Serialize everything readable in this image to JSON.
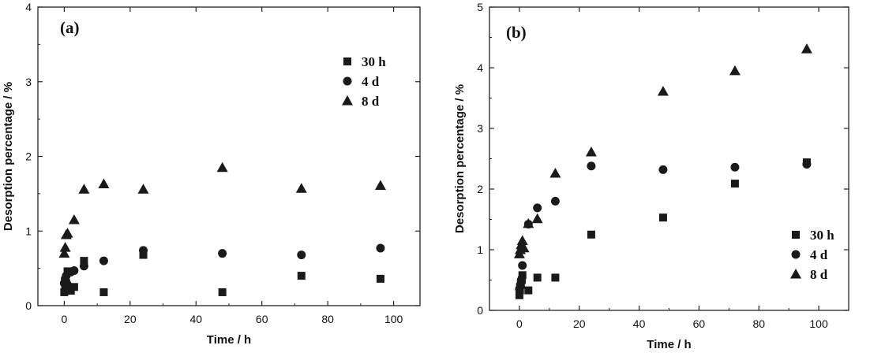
{
  "chart_data": [
    {
      "type": "scatter",
      "panel_label": "(a)",
      "xlabel": "Time / h",
      "ylabel": "Desorption percentage / %",
      "xlim": [
        -8,
        108
      ],
      "ylim": [
        0,
        4
      ],
      "xticks": [
        0,
        20,
        40,
        60,
        80,
        100
      ],
      "yticks": [
        0,
        1,
        2,
        3,
        4
      ],
      "x_minor_step": 10,
      "y_minor_step": 0.5,
      "grid": false,
      "legend_position": "top-right",
      "series": [
        {
          "name": "30 h",
          "marker": "square",
          "points": [
            [
              0,
              0.18
            ],
            [
              0.3,
              0.23
            ],
            [
              0.6,
              0.3
            ],
            [
              1,
              0.46
            ],
            [
              2,
              0.2
            ],
            [
              3,
              0.25
            ],
            [
              6,
              0.6
            ],
            [
              12,
              0.18
            ],
            [
              24,
              0.68
            ],
            [
              48,
              0.18
            ],
            [
              72,
              0.4
            ],
            [
              96,
              0.36
            ]
          ]
        },
        {
          "name": "4 d",
          "marker": "circle",
          "points": [
            [
              0,
              0.3
            ],
            [
              0.3,
              0.36
            ],
            [
              0.6,
              0.4
            ],
            [
              1,
              0.28
            ],
            [
              2,
              0.45
            ],
            [
              3,
              0.47
            ],
            [
              6,
              0.53
            ],
            [
              12,
              0.6
            ],
            [
              24,
              0.74
            ],
            [
              48,
              0.7
            ],
            [
              72,
              0.68
            ],
            [
              96,
              0.77
            ]
          ]
        },
        {
          "name": "8 d",
          "marker": "triangle",
          "points": [
            [
              0,
              0.7
            ],
            [
              0.3,
              0.78
            ],
            [
              0.6,
              0.95
            ],
            [
              1,
              0.97
            ],
            [
              3,
              1.15
            ],
            [
              6,
              1.56
            ],
            [
              12,
              1.63
            ],
            [
              24,
              1.56
            ],
            [
              48,
              1.85
            ],
            [
              72,
              1.57
            ],
            [
              96,
              1.61
            ]
          ]
        }
      ]
    },
    {
      "type": "scatter",
      "panel_label": "(b)",
      "xlabel": "Time / h",
      "ylabel": "Desorption percentage / %",
      "xlim": [
        -10,
        110
      ],
      "ylim": [
        0,
        5
      ],
      "xticks": [
        0,
        20,
        40,
        60,
        80,
        100
      ],
      "yticks": [
        0,
        1,
        2,
        3,
        4,
        5
      ],
      "x_minor_step": 10,
      "y_minor_step": 0.5,
      "grid": false,
      "legend_position": "bottom-right",
      "series": [
        {
          "name": "30 h",
          "marker": "square",
          "points": [
            [
              0,
              0.25
            ],
            [
              0.2,
              0.33
            ],
            [
              0.5,
              0.42
            ],
            [
              0.8,
              0.5
            ],
            [
              1,
              0.58
            ],
            [
              3,
              0.33
            ],
            [
              6,
              0.54
            ],
            [
              12,
              0.54
            ],
            [
              24,
              1.25
            ],
            [
              48,
              1.53
            ],
            [
              72,
              2.09
            ],
            [
              96,
              2.44
            ]
          ]
        },
        {
          "name": "4 d",
          "marker": "circle",
          "points": [
            [
              0,
              0.35
            ],
            [
              0.3,
              0.42
            ],
            [
              0.6,
              0.5
            ],
            [
              1,
              0.74
            ],
            [
              3,
              1.42
            ],
            [
              6,
              1.69
            ],
            [
              12,
              1.8
            ],
            [
              24,
              2.38
            ],
            [
              48,
              2.32
            ],
            [
              72,
              2.36
            ],
            [
              96,
              2.41
            ]
          ]
        },
        {
          "name": "8 d",
          "marker": "triangle",
          "points": [
            [
              0,
              0.93
            ],
            [
              0.3,
              1.0
            ],
            [
              0.6,
              1.08
            ],
            [
              1,
              1.15
            ],
            [
              1.5,
              1.03
            ],
            [
              3,
              1.43
            ],
            [
              6,
              1.51
            ],
            [
              12,
              2.26
            ],
            [
              24,
              2.61
            ],
            [
              48,
              3.61
            ],
            [
              72,
              3.95
            ],
            [
              96,
              4.31
            ]
          ]
        }
      ]
    }
  ]
}
